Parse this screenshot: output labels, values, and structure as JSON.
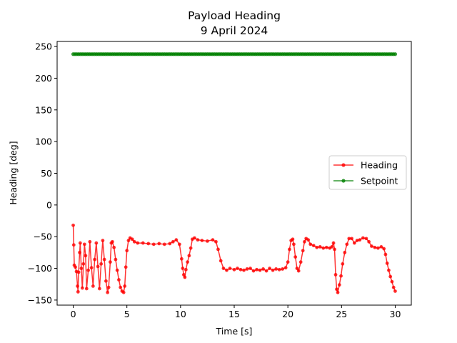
{
  "chart_data": {
    "type": "line",
    "title": "Payload Heading",
    "subtitle": "9 April 2024",
    "xlabel": "Time [s]",
    "ylabel": "Heading [deg]",
    "xlim": [
      -1.5,
      31.5
    ],
    "ylim": [
      -158,
      258
    ],
    "xticks": [
      0,
      5,
      10,
      15,
      20,
      25,
      30
    ],
    "xtick_labels": [
      "0",
      "5",
      "10",
      "15",
      "20",
      "25",
      "30"
    ],
    "yticks": [
      -150,
      -100,
      -50,
      0,
      50,
      100,
      150,
      200,
      250
    ],
    "ytick_labels": [
      "−150",
      "−100",
      "−50",
      "0",
      "50",
      "100",
      "150",
      "200",
      "250"
    ],
    "grid": false,
    "legend_position": "center-right",
    "series": [
      {
        "name": "Heading",
        "color": "#ff0000",
        "marker": "circle",
        "points": [
          [
            0.0,
            -32
          ],
          [
            0.05,
            -63
          ],
          [
            0.1,
            -95
          ],
          [
            0.2,
            -98
          ],
          [
            0.3,
            -105
          ],
          [
            0.4,
            -128
          ],
          [
            0.45,
            -137
          ],
          [
            0.5,
            -106
          ],
          [
            0.6,
            -75
          ],
          [
            0.65,
            -60
          ],
          [
            0.75,
            -100
          ],
          [
            0.85,
            -131
          ],
          [
            0.95,
            -93
          ],
          [
            1.05,
            -62
          ],
          [
            1.15,
            -80
          ],
          [
            1.25,
            -132
          ],
          [
            1.4,
            -103
          ],
          [
            1.55,
            -58
          ],
          [
            1.7,
            -99
          ],
          [
            1.85,
            -128
          ],
          [
            2.0,
            -86
          ],
          [
            2.15,
            -60
          ],
          [
            2.3,
            -97
          ],
          [
            2.45,
            -132
          ],
          [
            2.6,
            -93
          ],
          [
            2.75,
            -56
          ],
          [
            2.9,
            -86
          ],
          [
            3.05,
            -120
          ],
          [
            3.2,
            -138
          ],
          [
            3.3,
            -130
          ],
          [
            3.45,
            -90
          ],
          [
            3.55,
            -60
          ],
          [
            3.65,
            -58
          ],
          [
            3.8,
            -67
          ],
          [
            3.95,
            -86
          ],
          [
            4.1,
            -103
          ],
          [
            4.25,
            -118
          ],
          [
            4.4,
            -130
          ],
          [
            4.55,
            -136
          ],
          [
            4.7,
            -138
          ],
          [
            4.8,
            -128
          ],
          [
            4.9,
            -98
          ],
          [
            5.0,
            -72
          ],
          [
            5.15,
            -56
          ],
          [
            5.3,
            -52
          ],
          [
            5.5,
            -54
          ],
          [
            5.7,
            -58
          ],
          [
            6.0,
            -60
          ],
          [
            6.5,
            -60
          ],
          [
            7.0,
            -61
          ],
          [
            7.5,
            -62
          ],
          [
            8.0,
            -61
          ],
          [
            8.5,
            -62
          ],
          [
            9.0,
            -61
          ],
          [
            9.3,
            -58
          ],
          [
            9.6,
            -55
          ],
          [
            9.9,
            -62
          ],
          [
            10.1,
            -85
          ],
          [
            10.2,
            -100
          ],
          [
            10.3,
            -110
          ],
          [
            10.4,
            -114
          ],
          [
            10.5,
            -102
          ],
          [
            10.65,
            -90
          ],
          [
            10.8,
            -80
          ],
          [
            10.95,
            -68
          ],
          [
            11.1,
            -54
          ],
          [
            11.3,
            -52
          ],
          [
            11.6,
            -55
          ],
          [
            12.0,
            -56
          ],
          [
            12.5,
            -57
          ],
          [
            13.0,
            -55
          ],
          [
            13.3,
            -58
          ],
          [
            13.5,
            -70
          ],
          [
            13.75,
            -88
          ],
          [
            14.0,
            -100
          ],
          [
            14.3,
            -103
          ],
          [
            14.6,
            -100
          ],
          [
            15.0,
            -102
          ],
          [
            15.3,
            -100
          ],
          [
            15.6,
            -102
          ],
          [
            15.9,
            -103
          ],
          [
            16.2,
            -101
          ],
          [
            16.5,
            -100
          ],
          [
            16.8,
            -104
          ],
          [
            17.1,
            -102
          ],
          [
            17.4,
            -103
          ],
          [
            17.7,
            -101
          ],
          [
            18.0,
            -104
          ],
          [
            18.3,
            -100
          ],
          [
            18.6,
            -103
          ],
          [
            18.9,
            -101
          ],
          [
            19.2,
            -102
          ],
          [
            19.5,
            -101
          ],
          [
            19.8,
            -99
          ],
          [
            20.0,
            -90
          ],
          [
            20.15,
            -70
          ],
          [
            20.3,
            -56
          ],
          [
            20.45,
            -54
          ],
          [
            20.55,
            -62
          ],
          [
            20.7,
            -82
          ],
          [
            20.85,
            -100
          ],
          [
            21.0,
            -104
          ],
          [
            21.2,
            -90
          ],
          [
            21.4,
            -72
          ],
          [
            21.55,
            -58
          ],
          [
            21.7,
            -53
          ],
          [
            21.9,
            -55
          ],
          [
            22.1,
            -62
          ],
          [
            22.4,
            -64
          ],
          [
            22.7,
            -67
          ],
          [
            23.0,
            -66
          ],
          [
            23.3,
            -68
          ],
          [
            23.6,
            -67
          ],
          [
            23.9,
            -68
          ],
          [
            24.1,
            -66
          ],
          [
            24.25,
            -60
          ],
          [
            24.35,
            -70
          ],
          [
            24.45,
            -110
          ],
          [
            24.55,
            -133
          ],
          [
            24.65,
            -138
          ],
          [
            24.8,
            -126
          ],
          [
            24.95,
            -112
          ],
          [
            25.1,
            -93
          ],
          [
            25.3,
            -75
          ],
          [
            25.5,
            -62
          ],
          [
            25.7,
            -53
          ],
          [
            25.95,
            -53
          ],
          [
            26.2,
            -60
          ],
          [
            26.45,
            -56
          ],
          [
            26.7,
            -55
          ],
          [
            27.0,
            -52
          ],
          [
            27.3,
            -53
          ],
          [
            27.55,
            -58
          ],
          [
            27.8,
            -65
          ],
          [
            28.1,
            -67
          ],
          [
            28.4,
            -68
          ],
          [
            28.7,
            -66
          ],
          [
            28.95,
            -69
          ],
          [
            29.1,
            -78
          ],
          [
            29.25,
            -92
          ],
          [
            29.4,
            -103
          ],
          [
            29.55,
            -113
          ],
          [
            29.7,
            -121
          ],
          [
            29.85,
            -130
          ],
          [
            30.0,
            -136
          ]
        ]
      },
      {
        "name": "Setpoint",
        "color": "#008000",
        "marker": "circle",
        "points": [
          [
            0.0,
            238
          ],
          [
            30.0,
            238
          ]
        ],
        "dense_markers": true
      }
    ]
  }
}
